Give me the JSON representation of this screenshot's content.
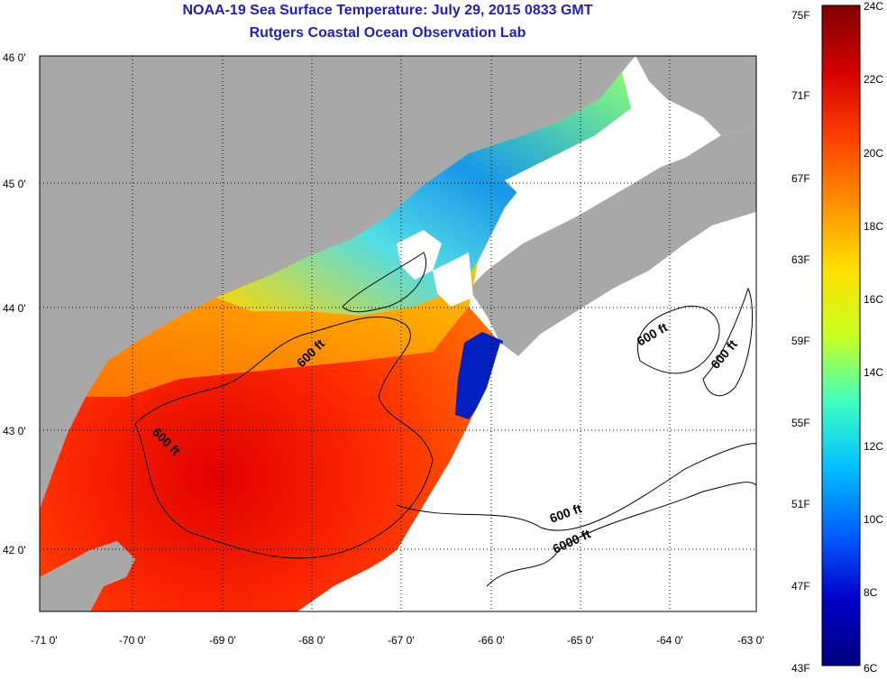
{
  "title_line1": "NOAA-19 Sea Surface Temperature:  July 29, 2015 0833 GMT",
  "title_line2": "Rutgers Coastal Ocean Observation Lab",
  "lat_labels": [
    "46 0'",
    "45 0'",
    "44 0'",
    "43 0'",
    "42 0'"
  ],
  "lon_labels": [
    "-71 0'",
    "-70 0'",
    "-69 0'",
    "-68 0'",
    "-67 0'",
    "-66 0'",
    "-65 0'",
    "-64 0'",
    "-63 0'"
  ],
  "contour_labels": [
    "600 ft",
    "600 ft",
    "600 ft",
    "600 ft",
    "600 ft",
    "6000 ft"
  ],
  "colorbar": {
    "fahrenheit_labels": [
      "75F",
      "71F",
      "67F",
      "63F",
      "59F",
      "55F",
      "51F",
      "47F",
      "43F"
    ],
    "celsius_labels": [
      "24C",
      "22C",
      "20C",
      "18C",
      "16C",
      "14C",
      "12C",
      "10C",
      "8C",
      "6C"
    ],
    "colors": [
      "#800000",
      "#d40000",
      "#ff4000",
      "#ff9000",
      "#ffe000",
      "#c8ff20",
      "#40ffc0",
      "#00c0ff",
      "#0060ff",
      "#0000c8",
      "#000080"
    ]
  },
  "colors": {
    "land": "#a8a8a8",
    "no_data": "#ffffff",
    "title": "#1e1ec8"
  }
}
